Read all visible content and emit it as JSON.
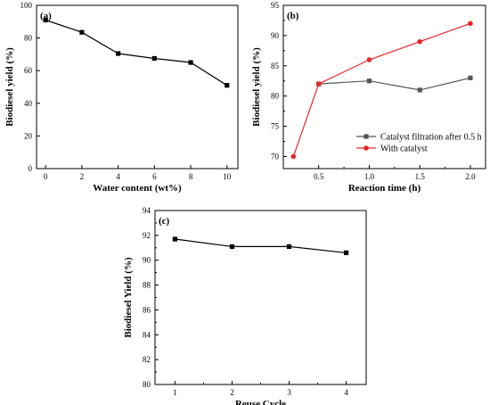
{
  "chart_data": [
    {
      "panel_label": "(a)",
      "type": "line",
      "xlabel": "Water content (wt%)",
      "ylabel": "Biodiesel yield (%)",
      "xlim": [
        -0.5,
        10.6
      ],
      "ylim": [
        0,
        100
      ],
      "xticks": [
        0,
        2,
        4,
        6,
        8,
        10
      ],
      "yticks": [
        0,
        20,
        40,
        60,
        80,
        100
      ],
      "legend": null,
      "series": [
        {
          "color": "#000000",
          "marker": "square",
          "x": [
            0,
            2,
            4,
            6,
            8,
            10
          ],
          "y": [
            91,
            83.5,
            70.5,
            67.5,
            65,
            51
          ]
        }
      ]
    },
    {
      "panel_label": "(b)",
      "type": "line",
      "xlabel": "Reaction time (h)",
      "ylabel": "Biodiesel yield (%)",
      "xlim": [
        0.15,
        2.15
      ],
      "ylim": [
        68,
        95
      ],
      "xticks": [
        0.5,
        1.0,
        1.5,
        2.0
      ],
      "ytick_labels": [
        "70",
        "75",
        "80",
        "85",
        "90",
        "95"
      ],
      "yticks": [
        70,
        75,
        80,
        85,
        90,
        95
      ],
      "xtick_labels": [
        "0.5",
        "1.0",
        "1.5",
        "2.0"
      ],
      "legend": "bottom-right",
      "series": [
        {
          "name": "Catalyst filtration after 0.5 h",
          "color": "#555555",
          "marker": "square",
          "x": [
            0.5,
            1.0,
            1.5,
            2.0
          ],
          "y": [
            82,
            82.5,
            81,
            83
          ]
        },
        {
          "name": "With catalyst",
          "color": "#e8262b",
          "marker": "circle",
          "x": [
            0.25,
            0.5,
            1.0,
            1.5,
            2.0
          ],
          "y": [
            70,
            82,
            86,
            89,
            92
          ]
        }
      ]
    },
    {
      "panel_label": "(c)",
      "type": "line",
      "xlabel": "Reuse Cycle",
      "ylabel": "Biodiesel Yield (%)",
      "xlim": [
        0.65,
        4.35
      ],
      "ylim": [
        80,
        94
      ],
      "xticks": [
        1,
        2,
        3,
        4
      ],
      "yticks": [
        80,
        82,
        84,
        86,
        88,
        90,
        92,
        94
      ],
      "legend": null,
      "series": [
        {
          "color": "#000000",
          "marker": "square",
          "x": [
            1,
            2,
            3,
            4
          ],
          "y": [
            91.7,
            91.1,
            91.1,
            90.6
          ]
        }
      ]
    }
  ]
}
